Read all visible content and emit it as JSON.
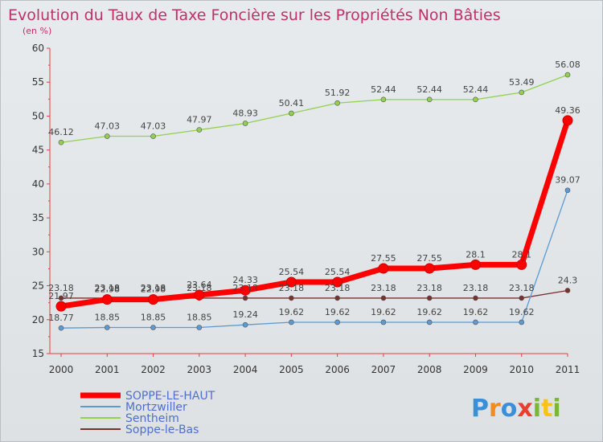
{
  "chart_data": {
    "type": "line",
    "title": "Evolution du Taux de Taxe Foncière sur les Propriétés Non Bâties",
    "subtitle": "(en %)",
    "x": [
      "2000",
      "2001",
      "2002",
      "2003",
      "2004",
      "2005",
      "2006",
      "2007",
      "2008",
      "2009",
      "2010",
      "2011"
    ],
    "ylim": [
      15,
      60
    ],
    "yticks": [
      15,
      20,
      25,
      30,
      35,
      40,
      45,
      50,
      55,
      60
    ],
    "grid": false,
    "legend_position": "bottom-left",
    "series": [
      {
        "name": "Sentheim",
        "color": "#92d050",
        "values": [
          46.12,
          47.03,
          47.03,
          47.97,
          48.93,
          50.41,
          51.92,
          52.44,
          52.44,
          52.44,
          53.49,
          56.08
        ],
        "labels": [
          "46.12",
          "47.03",
          "47.03",
          "47.97",
          "48.93",
          "50.41",
          "51.92",
          "52.44",
          "52.44",
          "52.44",
          "53.49",
          "56.08"
        ]
      },
      {
        "name": "Soppe-le-Bas",
        "color": "#7a3030",
        "values": [
          23.18,
          23.18,
          23.18,
          23.18,
          23.18,
          23.18,
          23.18,
          23.18,
          23.18,
          23.18,
          23.18,
          24.3
        ],
        "labels": [
          "23.18",
          "23.18",
          "23.18",
          "23.18",
          "23.18",
          "23.18",
          "23.18",
          "23.18",
          "23.18",
          "23.18",
          "23.18",
          "24.3"
        ]
      },
      {
        "name": "Mortzwiller",
        "color": "#5b9bd5",
        "values": [
          18.77,
          18.85,
          18.85,
          18.85,
          19.24,
          19.62,
          19.62,
          19.62,
          19.62,
          19.62,
          19.62,
          39.07
        ],
        "labels": [
          "18.77",
          "18.85",
          "18.85",
          "18.85",
          "19.24",
          "19.62",
          "19.62",
          "19.62",
          "19.62",
          "19.62",
          "19.62",
          "39.07"
        ]
      },
      {
        "name": "SOPPE-LE-HAUT",
        "color": "#ff0000",
        "values": [
          21.97,
          22.98,
          22.98,
          23.64,
          24.33,
          25.54,
          25.54,
          27.55,
          27.55,
          28.1,
          28.1,
          49.36
        ],
        "labels": [
          "21.97",
          "22.98",
          "22.98",
          "23.64",
          "24.33",
          "25.54",
          "25.54",
          "27.55",
          "27.55",
          "28.1",
          "28.1",
          "49.36"
        ]
      }
    ],
    "legend": [
      {
        "name": "SOPPE-LE-HAUT",
        "color": "#ff0000"
      },
      {
        "name": "Mortzwiller",
        "color": "#5b9bd5"
      },
      {
        "name": "Sentheim",
        "color": "#92d050"
      },
      {
        "name": "Soppe-le-Bas",
        "color": "#7a3030"
      }
    ]
  },
  "logo": {
    "letters": [
      "P",
      "r",
      "o",
      "x",
      "i",
      "t",
      "i"
    ],
    "colors": [
      "#3b8fd8",
      "#f28c1e",
      "#3b8fd8",
      "#e93d2e",
      "#79b833",
      "#f6c21b",
      "#79b833"
    ]
  }
}
